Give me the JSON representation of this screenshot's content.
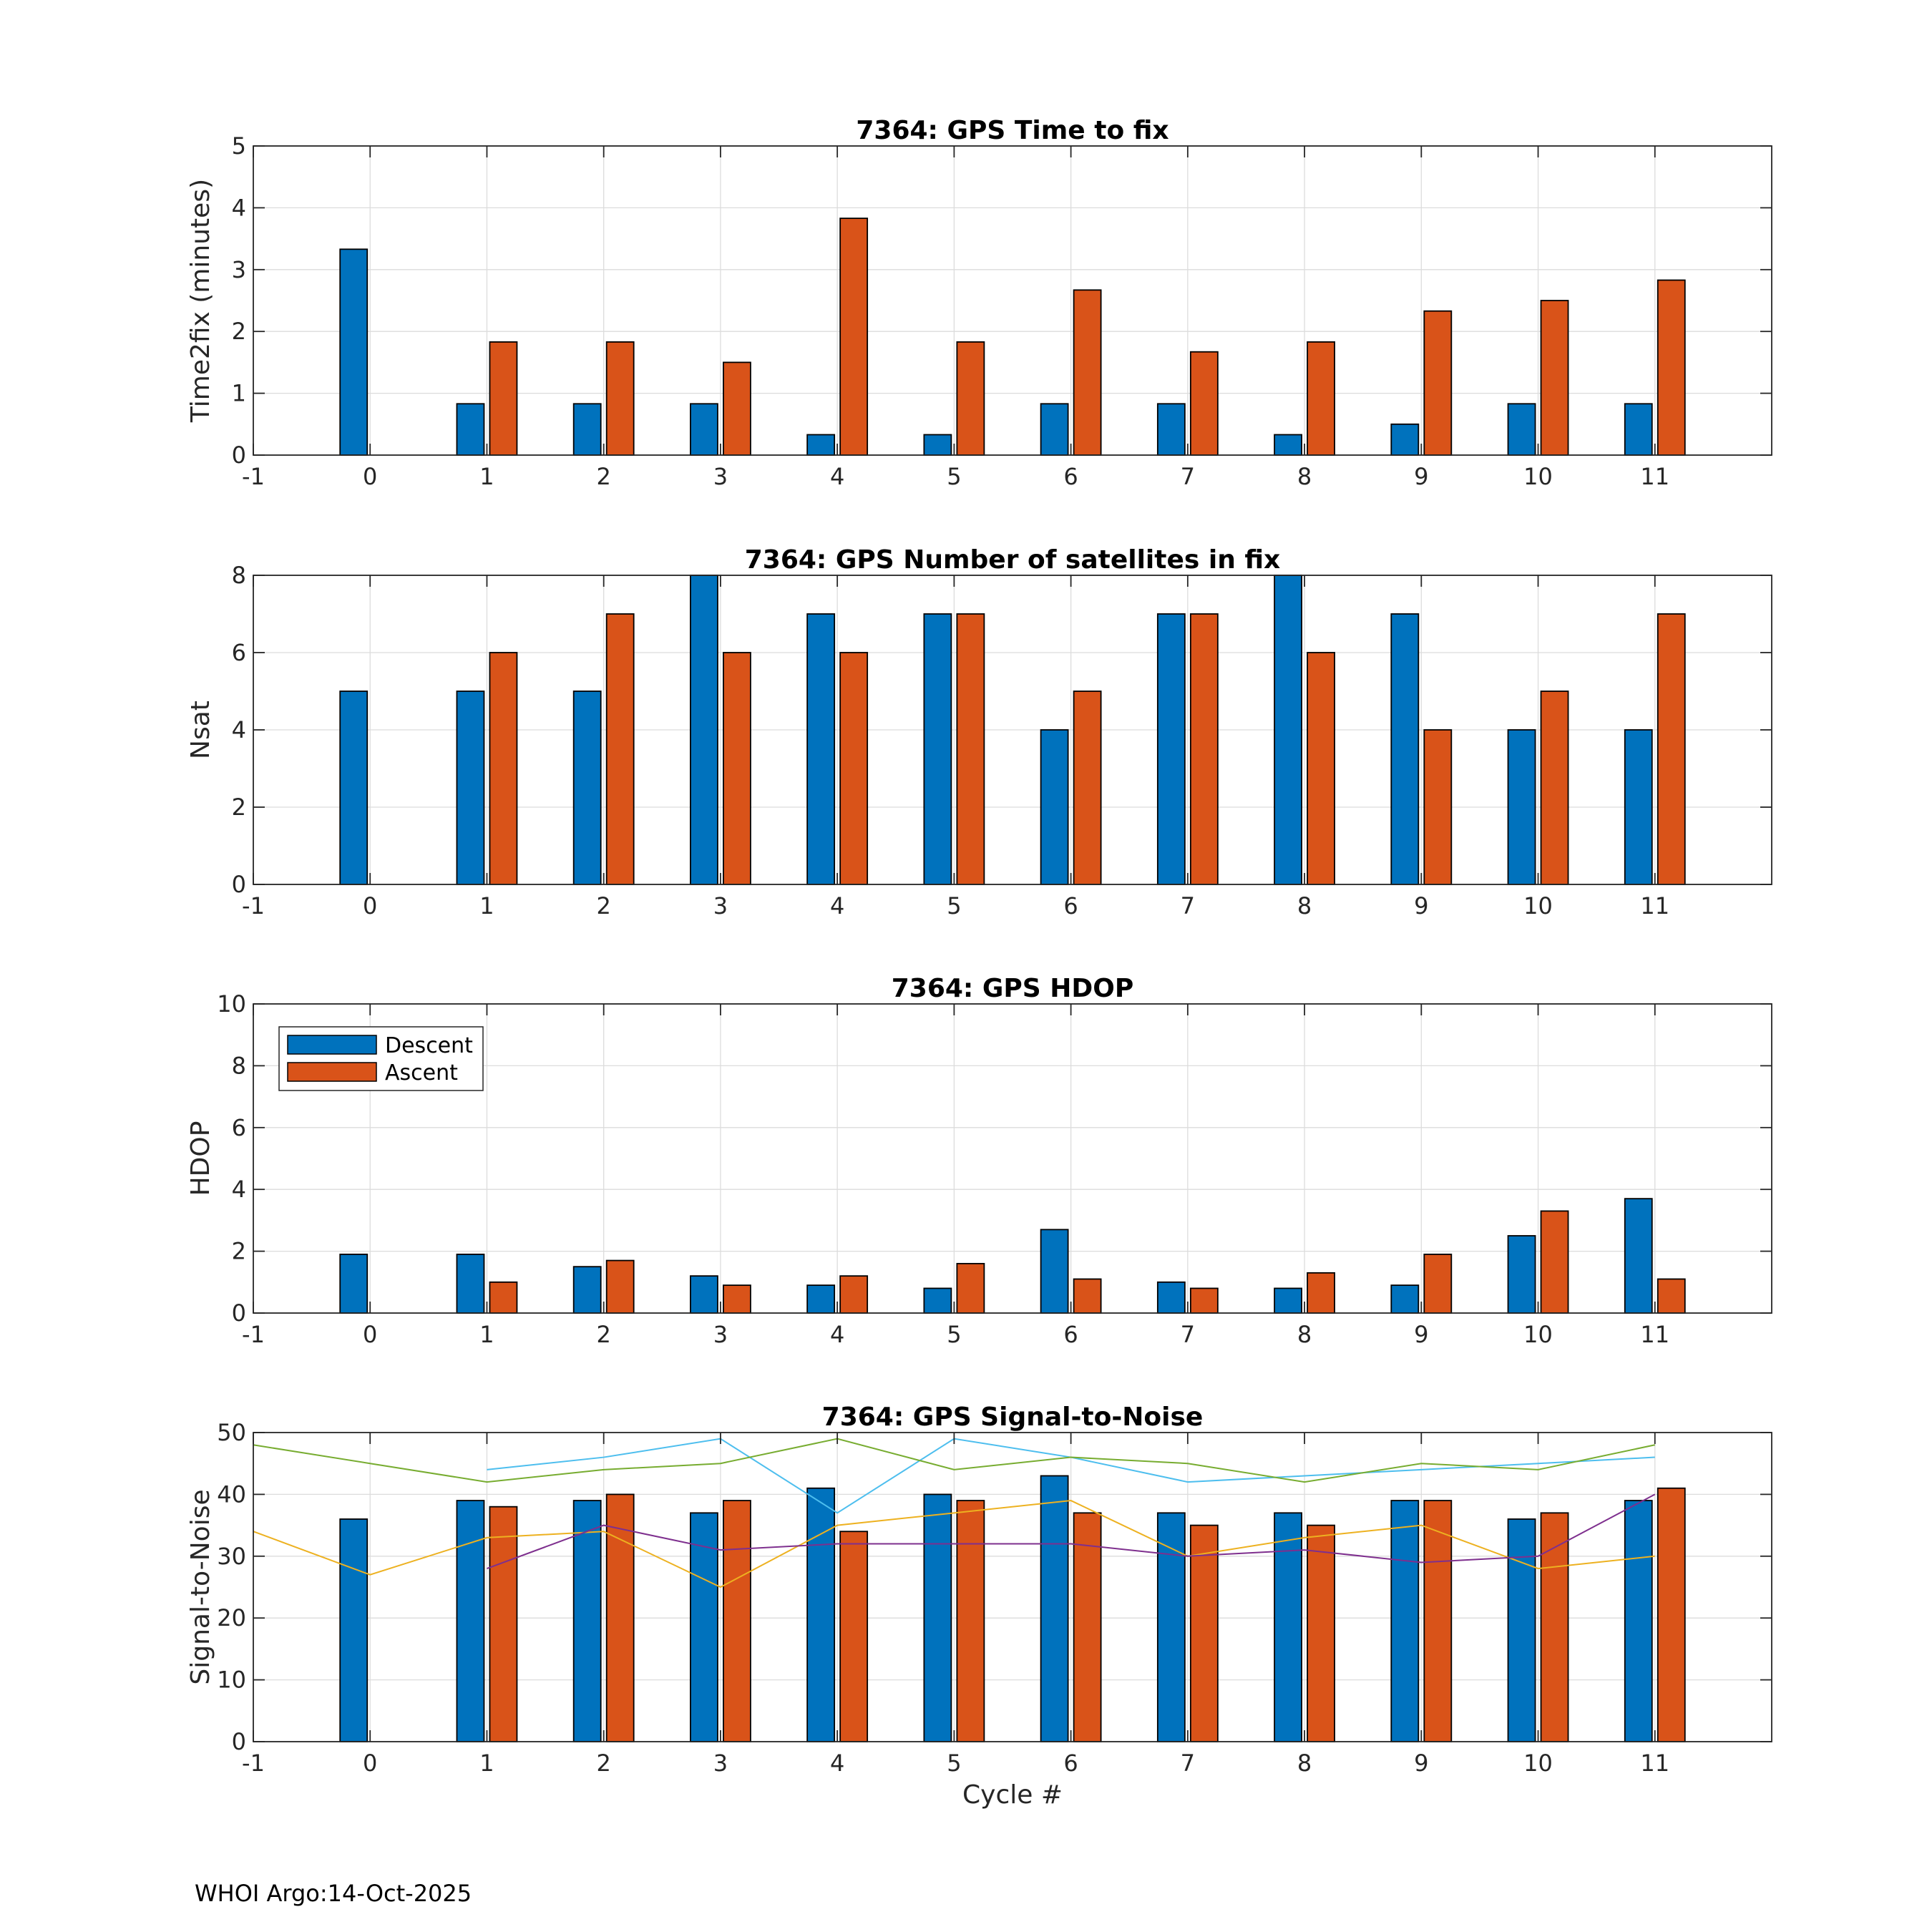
{
  "figure": {
    "footer": "WHOI Argo:14-Oct-2025"
  },
  "colors": {
    "descent": "#0072BD",
    "ascent": "#D95319",
    "grid": "#dcdcdc",
    "snr_lines": [
      "#4DBEEE",
      "#77AC30",
      "#EDB120",
      "#7E2F8E"
    ]
  },
  "chart_data": [
    {
      "type": "bar",
      "title": "7364: GPS Time to fix",
      "xlabel": "",
      "ylabel": "Time2fix (minutes)",
      "xlim": [
        -1,
        12
      ],
      "ylim": [
        0,
        5
      ],
      "xticks": [
        "-1",
        "0",
        "1",
        "2",
        "3",
        "4",
        "5",
        "6",
        "7",
        "8",
        "9",
        "10",
        "11"
      ],
      "yticks": [
        "0",
        "1",
        "2",
        "3",
        "4",
        "5"
      ],
      "grid": true,
      "categories": [
        0,
        1,
        2,
        3,
        4,
        5,
        6,
        7,
        8,
        9,
        10,
        11
      ],
      "series": [
        {
          "name": "Descent",
          "values": [
            3.33,
            0.83,
            0.83,
            0.83,
            0.33,
            0.33,
            0.83,
            0.83,
            0.33,
            0.5,
            0.83,
            0.83
          ]
        },
        {
          "name": "Ascent",
          "values": [
            null,
            1.83,
            1.83,
            1.5,
            3.83,
            1.83,
            2.67,
            1.67,
            1.83,
            2.33,
            2.5,
            2.83
          ]
        }
      ]
    },
    {
      "type": "bar",
      "title": "7364: GPS Number of satellites in fix",
      "xlabel": "",
      "ylabel": "Nsat",
      "xlim": [
        -1,
        12
      ],
      "ylim": [
        0,
        8
      ],
      "xticks": [
        "-1",
        "0",
        "1",
        "2",
        "3",
        "4",
        "5",
        "6",
        "7",
        "8",
        "9",
        "10",
        "11"
      ],
      "yticks": [
        "0",
        "2",
        "4",
        "6",
        "8"
      ],
      "grid": true,
      "categories": [
        0,
        1,
        2,
        3,
        4,
        5,
        6,
        7,
        8,
        9,
        10,
        11
      ],
      "series": [
        {
          "name": "Descent",
          "values": [
            5,
            5,
            5,
            8,
            7,
            7,
            4,
            7,
            8,
            7,
            4,
            4
          ]
        },
        {
          "name": "Ascent",
          "values": [
            null,
            6,
            7,
            6,
            6,
            7,
            5,
            7,
            6,
            4,
            5,
            7
          ]
        }
      ]
    },
    {
      "type": "bar",
      "title": "7364: GPS HDOP",
      "xlabel": "",
      "ylabel": "HDOP",
      "xlim": [
        -1,
        12
      ],
      "ylim": [
        0,
        10
      ],
      "xticks": [
        "-1",
        "0",
        "1",
        "2",
        "3",
        "4",
        "5",
        "6",
        "7",
        "8",
        "9",
        "10",
        "11"
      ],
      "yticks": [
        "0",
        "2",
        "4",
        "6",
        "8",
        "10"
      ],
      "grid": true,
      "legend": {
        "position": "top-left",
        "entries": [
          "Descent",
          "Ascent"
        ]
      },
      "categories": [
        0,
        1,
        2,
        3,
        4,
        5,
        6,
        7,
        8,
        9,
        10,
        11
      ],
      "series": [
        {
          "name": "Descent",
          "values": [
            1.9,
            1.9,
            1.5,
            1.2,
            0.9,
            0.8,
            2.7,
            1.0,
            0.8,
            0.9,
            2.5,
            3.7
          ]
        },
        {
          "name": "Ascent",
          "values": [
            null,
            1.0,
            1.7,
            0.9,
            1.2,
            1.6,
            1.1,
            0.8,
            1.3,
            1.9,
            3.3,
            1.1
          ]
        }
      ]
    },
    {
      "type": "bar",
      "title": "7364: GPS Signal-to-Noise",
      "xlabel": "Cycle #",
      "ylabel": "Signal-to-Noise",
      "xlim": [
        -1,
        12
      ],
      "ylim": [
        0,
        50
      ],
      "xticks": [
        "-1",
        "0",
        "1",
        "2",
        "3",
        "4",
        "5",
        "6",
        "7",
        "8",
        "9",
        "10",
        "11"
      ],
      "yticks": [
        "0",
        "10",
        "20",
        "30",
        "40",
        "50"
      ],
      "grid": true,
      "categories": [
        0,
        1,
        2,
        3,
        4,
        5,
        6,
        7,
        8,
        9,
        10,
        11
      ],
      "series": [
        {
          "name": "Descent",
          "values": [
            36,
            39,
            39,
            37,
            41,
            40,
            43,
            37,
            37,
            39,
            36,
            39
          ]
        },
        {
          "name": "Ascent",
          "values": [
            null,
            38,
            40,
            39,
            34,
            39,
            37,
            35,
            35,
            39,
            37,
            41
          ]
        }
      ],
      "lines": [
        {
          "color": "#4DBEEE",
          "x": [
            1,
            2,
            3,
            4,
            5,
            6,
            7,
            8,
            9,
            10,
            11
          ],
          "y": [
            44,
            46,
            49,
            37,
            49,
            46,
            42,
            43,
            44,
            45,
            46
          ]
        },
        {
          "color": "#77AC30",
          "x": [
            -1,
            0,
            1,
            2,
            3,
            4,
            5,
            6,
            7,
            8,
            9,
            10,
            11
          ],
          "y": [
            48,
            45,
            42,
            44,
            45,
            49,
            44,
            46,
            45,
            42,
            45,
            44,
            48
          ]
        },
        {
          "color": "#EDB120",
          "x": [
            -1,
            0,
            1,
            2,
            3,
            4,
            5,
            6,
            7,
            8,
            9,
            10,
            11
          ],
          "y": [
            34,
            27,
            33,
            34,
            25,
            35,
            37,
            39,
            30,
            33,
            35,
            28,
            30
          ]
        },
        {
          "color": "#7E2F8E",
          "x": [
            1,
            2,
            3,
            4,
            5,
            6,
            7,
            8,
            9,
            10,
            11
          ],
          "y": [
            28,
            35,
            31,
            32,
            32,
            32,
            30,
            31,
            29,
            30,
            40
          ]
        }
      ]
    }
  ]
}
